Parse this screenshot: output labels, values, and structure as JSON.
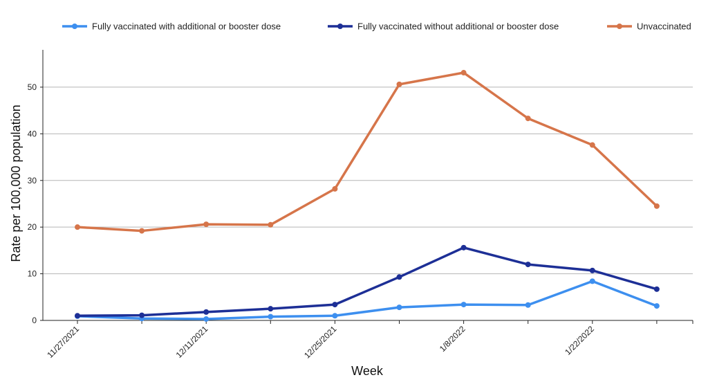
{
  "chart_data": {
    "type": "line",
    "xlabel": "Week",
    "ylabel": "Rate per 100,000 population",
    "ylim": [
      0,
      58
    ],
    "yticks": [
      0,
      10,
      20,
      30,
      40,
      50
    ],
    "grid": true,
    "legend_position": "top",
    "x": [
      "11/27/2021",
      "12/4/2021",
      "12/11/2021",
      "12/18/2021",
      "12/25/2021",
      "1/1/2022",
      "1/8/2022",
      "1/15/2022",
      "1/22/2022",
      "1/29/2022"
    ],
    "x_tick_labels": [
      "11/27/2021",
      "",
      "12/11/2021",
      "",
      "12/25/2021",
      "",
      "1/8/2022",
      "",
      "1/22/2022",
      ""
    ],
    "series": [
      {
        "name": "Fully vaccinated with additional or booster dose",
        "color": "#3d8fef",
        "values": [
          0.9,
          0.4,
          0.3,
          0.8,
          1.0,
          2.8,
          3.4,
          3.3,
          8.4,
          3.1
        ]
      },
      {
        "name": "Fully vaccinated without additional or booster dose",
        "color": "#1d2f96",
        "values": [
          1.0,
          1.1,
          1.8,
          2.5,
          3.4,
          9.3,
          15.6,
          12.0,
          10.7,
          6.7
        ]
      },
      {
        "name": "Unvaccinated",
        "color": "#d6754a",
        "values": [
          20.0,
          19.2,
          20.6,
          20.5,
          28.2,
          50.6,
          53.1,
          43.3,
          37.6,
          24.5
        ]
      }
    ]
  }
}
